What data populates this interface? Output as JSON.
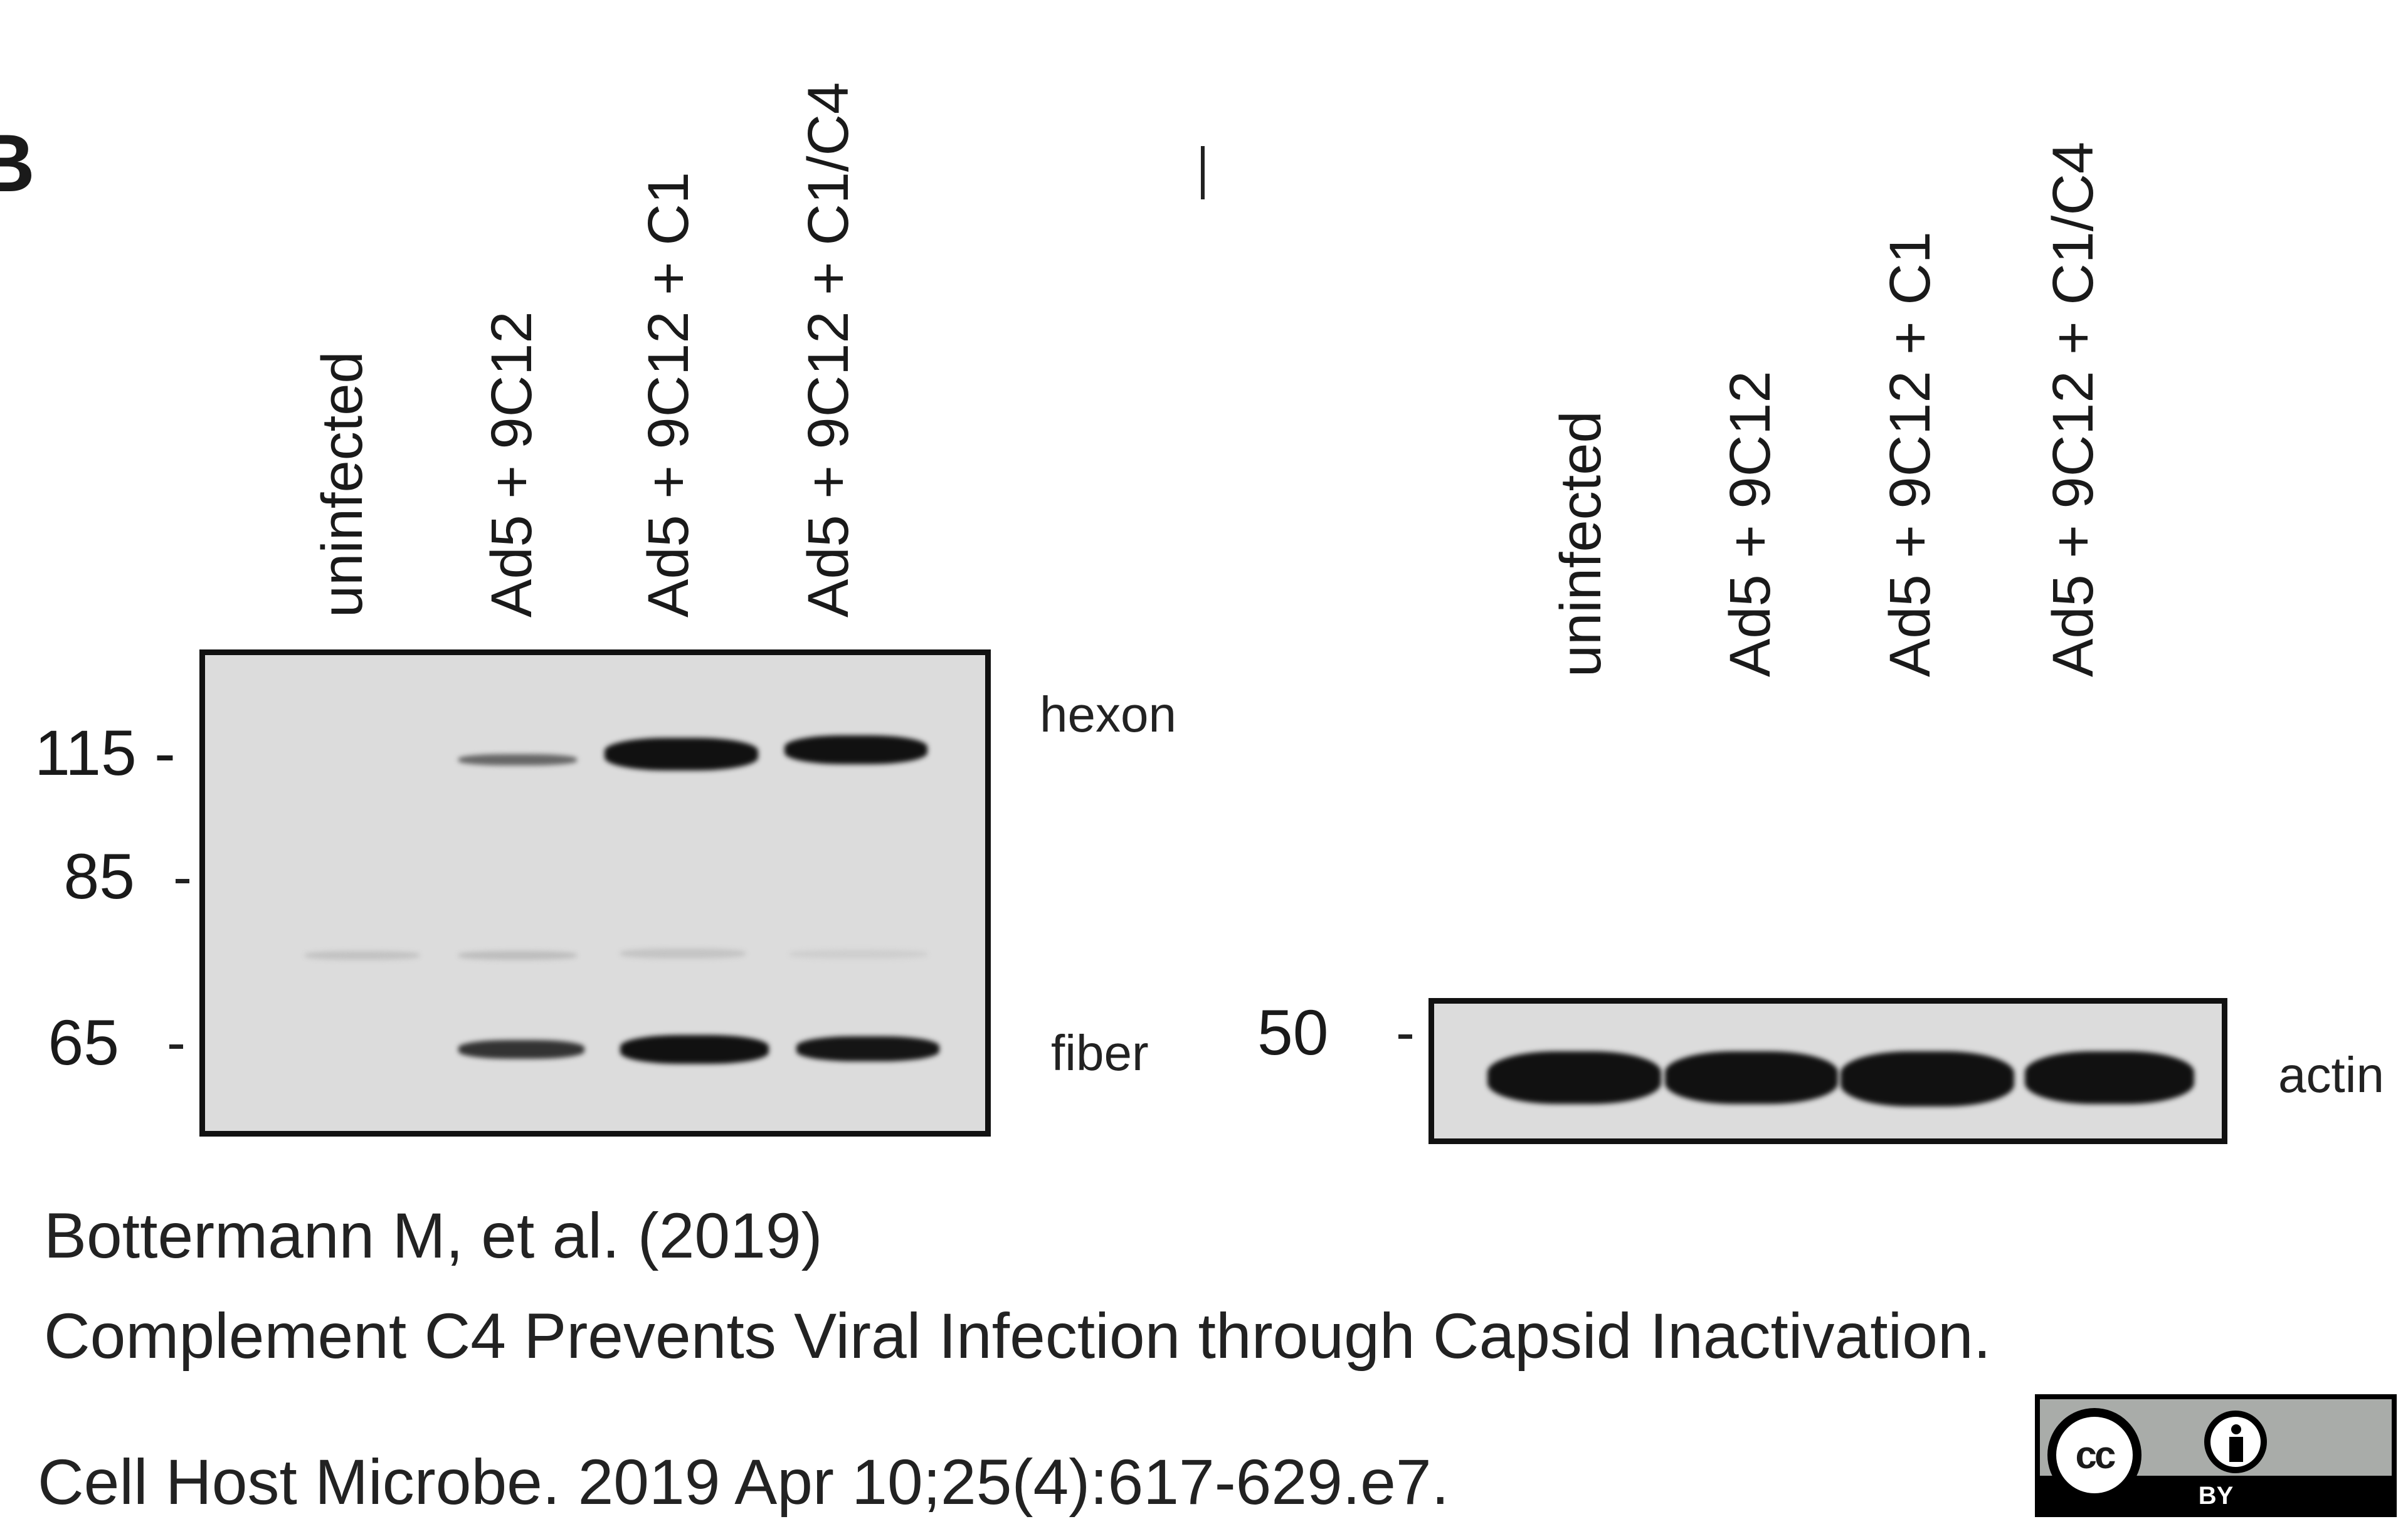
{
  "panel_letter": "B",
  "left_blot": {
    "lanes": [
      "uninfected",
      "Ad5 + 9C12",
      "Ad5 + 9C12 + C1",
      "Ad5 + 9C12 + C1/C4"
    ],
    "markers": [
      "115 -",
      "85",
      "65"
    ],
    "band_labels": [
      "hexon",
      "fiber"
    ]
  },
  "right_blot": {
    "lanes": [
      "uninfected",
      "Ad5 + 9C12",
      "Ad5 + 9C12 + C1",
      "Ad5 + 9C12 + C1/C4"
    ],
    "markers": [
      "50"
    ],
    "band_labels": [
      "actin"
    ]
  },
  "citation": {
    "authors": "Bottermann M, et al. (2019)",
    "title": "Complement C4 Prevents Viral Infection through Capsid Inactivation.",
    "journal": "Cell Host Microbe. 2019 Apr 10;25(4):617-629.e7."
  },
  "license_badge": {
    "cc": "cc",
    "by": "BY"
  }
}
